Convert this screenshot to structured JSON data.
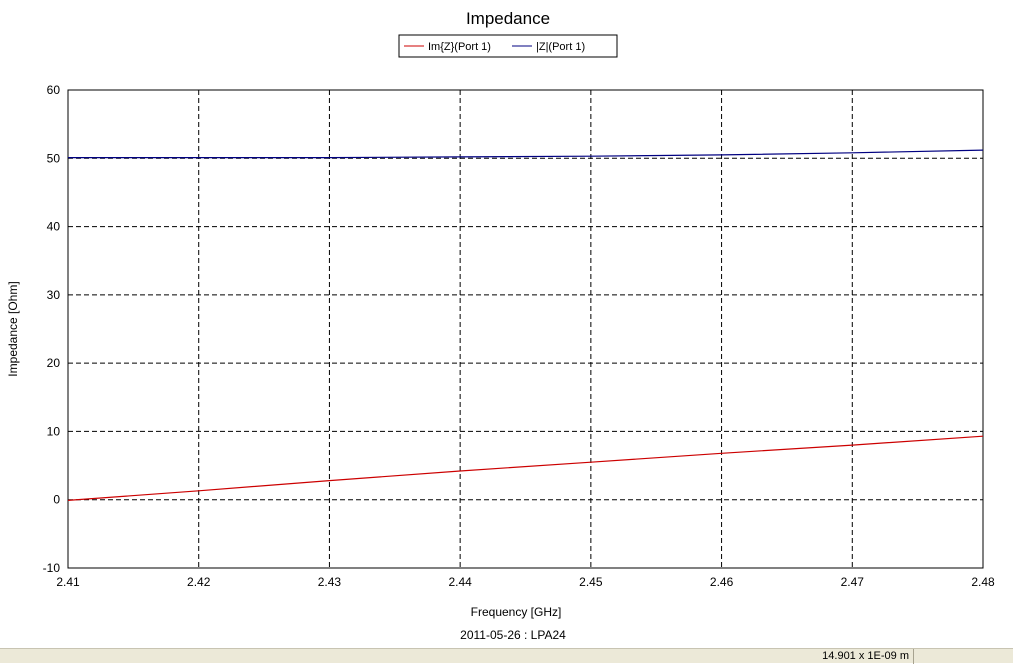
{
  "chart_data": {
    "type": "line",
    "title": "Impedance",
    "xlabel": "Frequency [GHz]",
    "ylabel": "Impedance [Ohm]",
    "footer": "2011-05-26 : LPA24",
    "xlim": [
      2.41,
      2.48
    ],
    "ylim": [
      -10,
      60
    ],
    "x_ticks": [
      "2.41",
      "2.42",
      "2.43",
      "2.44",
      "2.45",
      "2.46",
      "2.47",
      "2.48"
    ],
    "y_ticks": [
      "60",
      "50",
      "40",
      "30",
      "20",
      "10",
      "0",
      "-10"
    ],
    "grid": true,
    "legend_position": "top-center",
    "x": [
      2.41,
      2.42,
      2.43,
      2.44,
      2.45,
      2.46,
      2.47,
      2.48
    ],
    "series": [
      {
        "name": "Im{Z}(Port 1)",
        "color": "#cc0000",
        "values": [
          -0.1,
          1.3,
          2.8,
          4.2,
          5.5,
          6.8,
          8.0,
          9.3
        ]
      },
      {
        "name": "|Z|(Port 1)",
        "color": "#000080",
        "values": [
          50.1,
          50.1,
          50.1,
          50.2,
          50.3,
          50.5,
          50.8,
          51.2
        ]
      }
    ]
  },
  "status_bar": {
    "coordinates": "14.901 x 1E-09 m"
  }
}
